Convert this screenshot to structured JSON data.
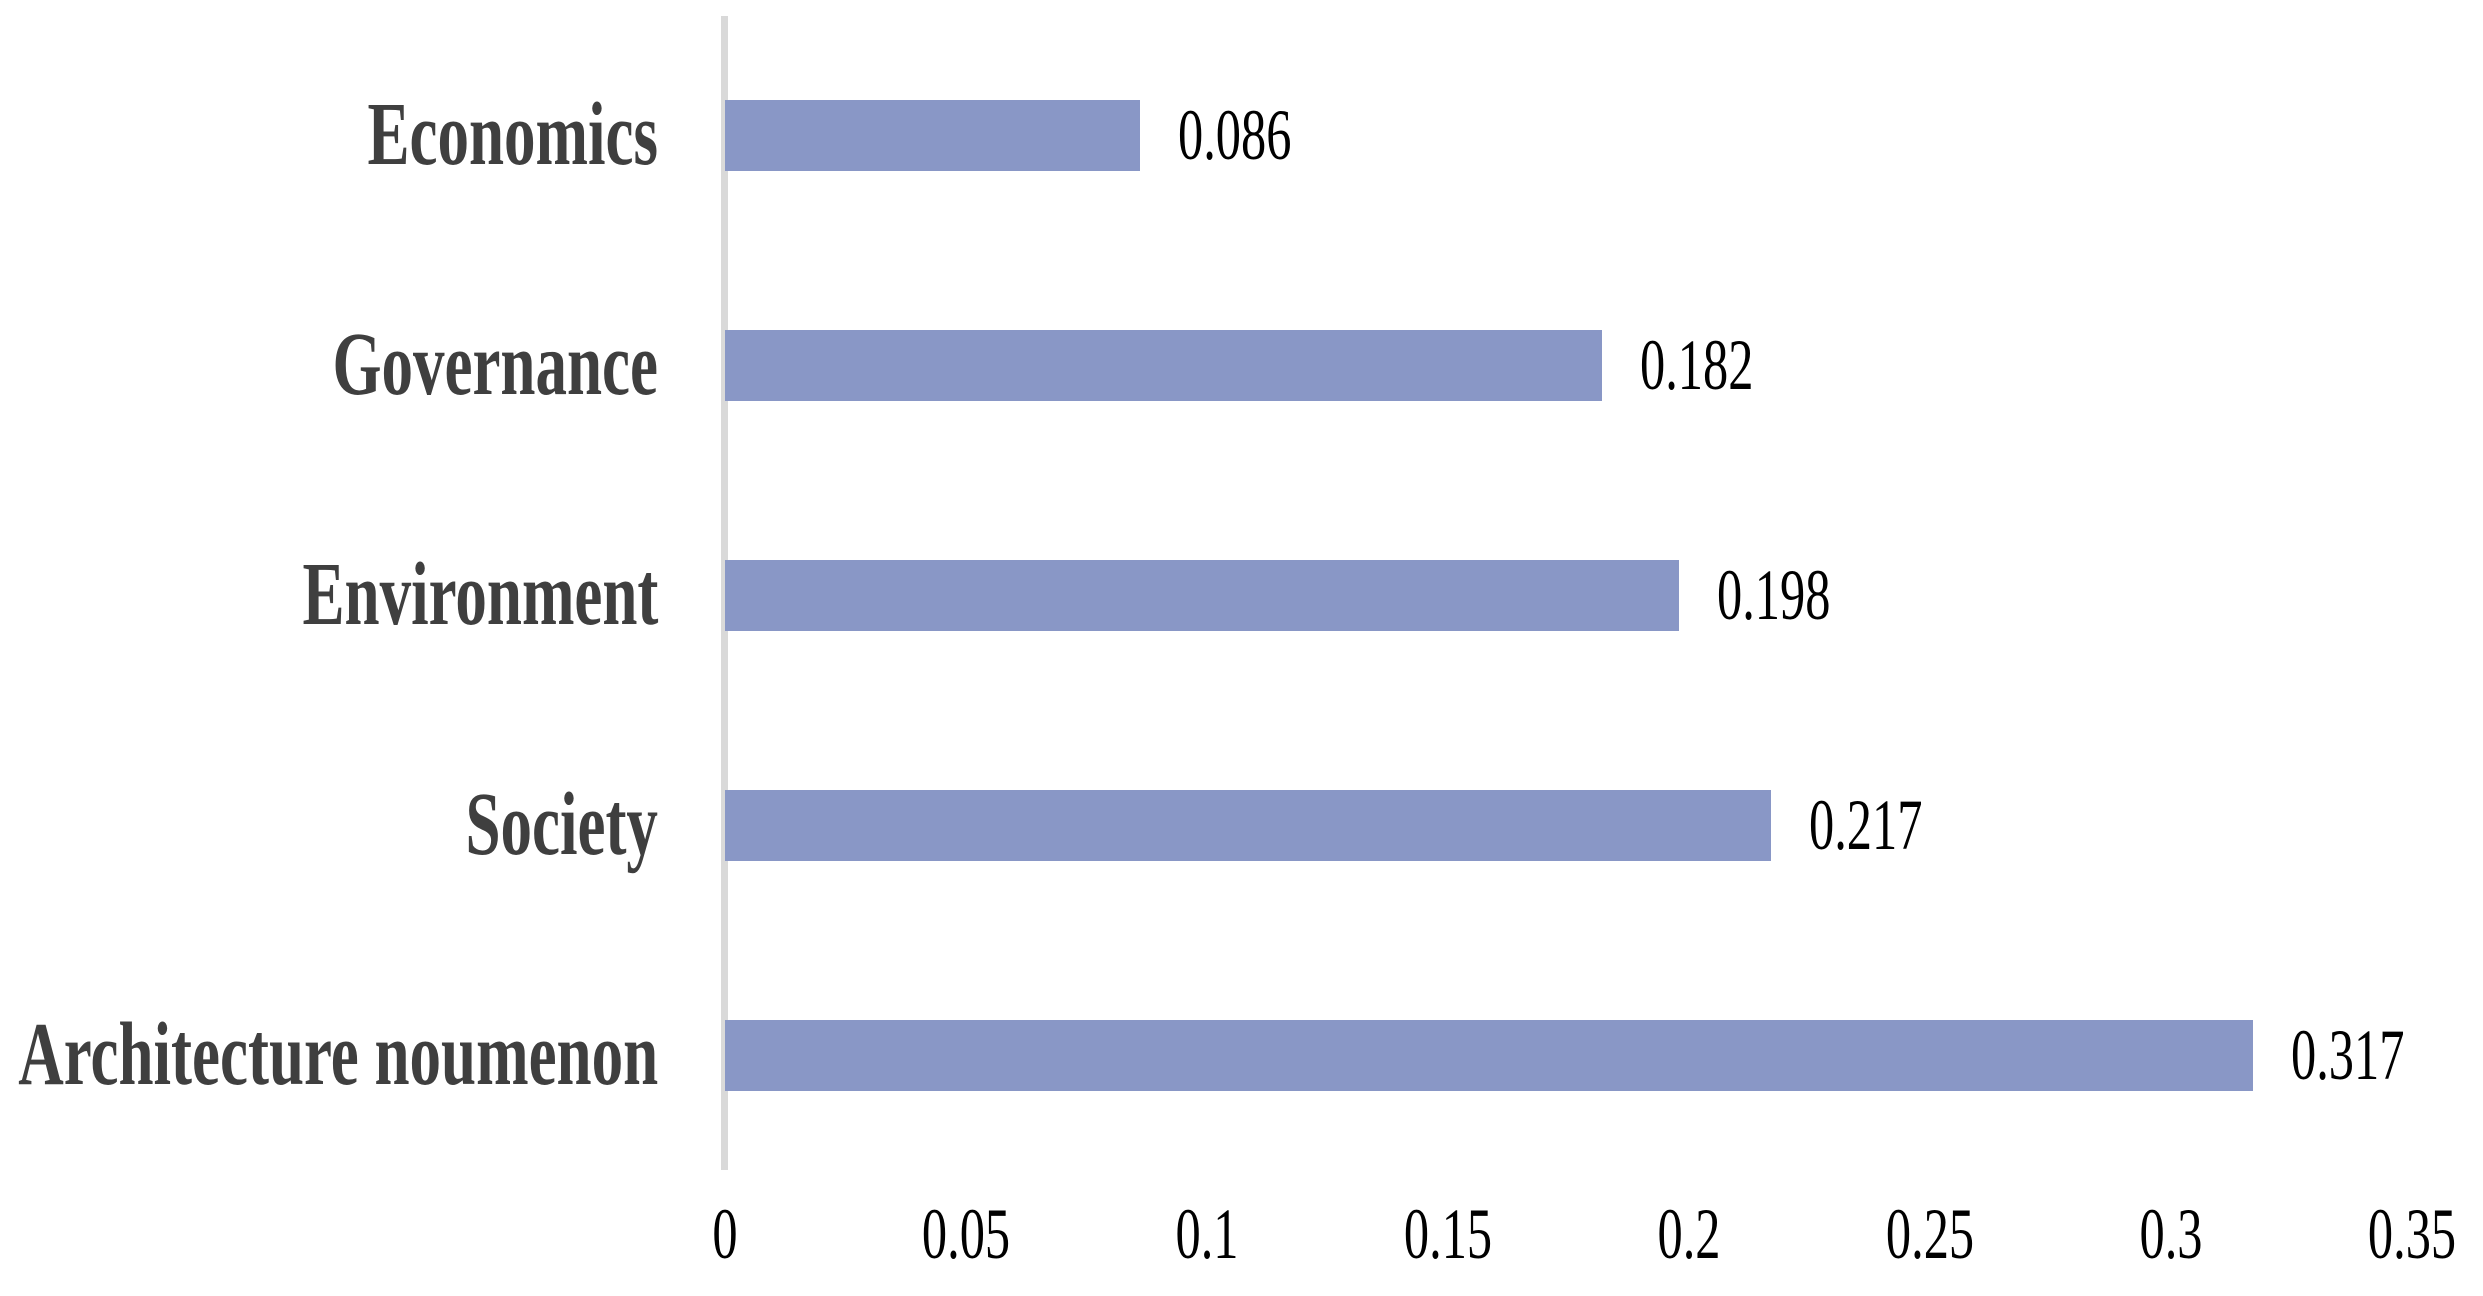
{
  "chart_data": {
    "type": "bar",
    "orientation": "horizontal",
    "title": "",
    "xlabel": "",
    "ylabel": "",
    "categories": [
      "Economics",
      "Governance",
      "Environment",
      "Society",
      "Architecture noumenon"
    ],
    "values": [
      0.086,
      0.182,
      0.198,
      0.217,
      0.317
    ],
    "value_labels": [
      "0.086",
      "0.182",
      "0.198",
      "0.217",
      "0.317"
    ],
    "xlim": [
      0,
      0.35
    ],
    "x_ticks": [
      "0",
      "0.05",
      "0.1",
      "0.15",
      "0.2",
      "0.25",
      "0.3",
      "0.35"
    ],
    "grid": false,
    "legend": false,
    "data_labels_position": "outside-end"
  },
  "colors": {
    "background": "#FFFFFF",
    "bar_fill": "#8997C6",
    "category_label": "#3F3F3F",
    "value_label": "#000000",
    "tick_label": "#000000",
    "axis_line": "#D9D9D9"
  }
}
